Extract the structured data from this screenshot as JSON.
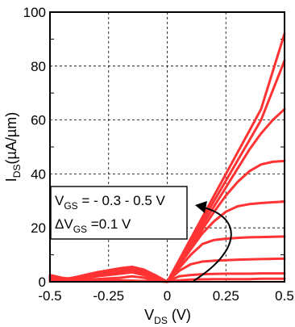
{
  "chart_data": {
    "type": "line",
    "xlabel": {
      "main": "V",
      "sub": "DS",
      "unit": " (V)"
    },
    "ylabel": {
      "main": "I",
      "sub": "DS",
      "unit": "(µA/µm)"
    },
    "xlim": [
      -0.5,
      0.5
    ],
    "ylim": [
      0,
      100
    ],
    "xticks": [
      -0.5,
      -0.25,
      0,
      0.25,
      0.5
    ],
    "xtick_labels": [
      "-0.5",
      "-0.25",
      "0",
      "0.25",
      "0.5"
    ],
    "yticks": [
      0,
      20,
      40,
      60,
      80,
      100
    ],
    "ytick_labels": [
      "0",
      "20",
      "40",
      "60",
      "80",
      "100"
    ],
    "grid": true,
    "line_color": "#ff3333",
    "annotation": {
      "line1": {
        "main": "V",
        "sub": "GS",
        "rest": " = - 0.3 - 0.5 V"
      },
      "line2": {
        "main": "ΔV",
        "sub": "GS",
        "rest": " =0.1 V"
      }
    },
    "series": [
      {
        "x": [
          -0.5,
          -0.45,
          -0.4,
          -0.3,
          -0.2,
          -0.1,
          -0.05,
          0,
          0.05,
          0.1,
          0.15,
          0.2,
          0.25,
          0.3,
          0.35,
          0.4,
          0.45,
          0.5
        ],
        "y": [
          2,
          1,
          0.5,
          0.5,
          0.5,
          0.3,
          0.2,
          0,
          0.5,
          0.8,
          0.9,
          1.0,
          1.0,
          1.0,
          1.0,
          1.1,
          1.1,
          1.1
        ]
      },
      {
        "x": [
          -0.5,
          -0.45,
          -0.4,
          -0.3,
          -0.2,
          -0.15,
          -0.1,
          -0.05,
          0,
          0.05,
          0.1,
          0.15,
          0.2,
          0.25,
          0.3,
          0.35,
          0.4,
          0.45,
          0.5
        ],
        "y": [
          2.5,
          1.5,
          1,
          1,
          1.5,
          2,
          1.5,
          0.5,
          0,
          2,
          2.5,
          2.8,
          2.9,
          3.0,
          3.0,
          3.0,
          3.1,
          3.1,
          3.1
        ]
      },
      {
        "x": [
          -0.5,
          -0.45,
          -0.4,
          -0.3,
          -0.2,
          -0.15,
          -0.1,
          -0.05,
          0,
          0.05,
          0.1,
          0.15,
          0.2,
          0.25,
          0.3,
          0.35,
          0.4,
          0.45,
          0.5
        ],
        "y": [
          1.5,
          1,
          1,
          2,
          3,
          3.5,
          2.5,
          1,
          0,
          4,
          6.5,
          7.5,
          7.8,
          8.0,
          8.2,
          8.3,
          8.4,
          8.5,
          8.6
        ]
      },
      {
        "x": [
          -0.5,
          -0.45,
          -0.4,
          -0.3,
          -0.2,
          -0.15,
          -0.1,
          -0.05,
          0,
          0.05,
          0.1,
          0.15,
          0.2,
          0.25,
          0.3,
          0.35,
          0.4,
          0.45,
          0.5
        ],
        "y": [
          1,
          1,
          1.5,
          2.5,
          3.5,
          4,
          3,
          1.5,
          0,
          5,
          10,
          14,
          15.5,
          16,
          16.3,
          16.5,
          16.6,
          16.7,
          16.8
        ]
      },
      {
        "x": [
          -0.5,
          -0.45,
          -0.4,
          -0.3,
          -0.2,
          -0.15,
          -0.1,
          -0.05,
          0,
          0.05,
          0.1,
          0.15,
          0.2,
          0.25,
          0.3,
          0.35,
          0.4,
          0.45,
          0.5
        ],
        "y": [
          0.5,
          0.8,
          1.5,
          3,
          4,
          4.5,
          3.5,
          1.8,
          0,
          6,
          12,
          18,
          22.5,
          26,
          28,
          28.8,
          29.2,
          29.5,
          29.7
        ]
      },
      {
        "x": [
          -0.5,
          -0.45,
          -0.4,
          -0.3,
          -0.2,
          -0.15,
          -0.1,
          -0.05,
          0,
          0.05,
          0.1,
          0.15,
          0.2,
          0.25,
          0.3,
          0.35,
          0.4,
          0.45,
          0.5
        ],
        "y": [
          0.5,
          0.5,
          1.5,
          3.5,
          4.5,
          5,
          4,
          2,
          0,
          6.5,
          13,
          19.5,
          26,
          32,
          37,
          41,
          43.5,
          44.5,
          44.8
        ]
      },
      {
        "x": [
          -0.5,
          -0.45,
          -0.4,
          -0.3,
          -0.2,
          -0.15,
          -0.1,
          -0.05,
          0,
          0.05,
          0.1,
          0.15,
          0.2,
          0.25,
          0.3,
          0.35,
          0.4,
          0.45,
          0.5
        ],
        "y": [
          0.3,
          0.5,
          1.5,
          3.5,
          5,
          5.5,
          4.5,
          2.2,
          0,
          7,
          14,
          21,
          28,
          35,
          42,
          49,
          55,
          60,
          64
        ]
      },
      {
        "x": [
          -0.5,
          -0.45,
          -0.4,
          -0.3,
          -0.2,
          -0.15,
          -0.1,
          -0.05,
          0,
          0.05,
          0.1,
          0.15,
          0.2,
          0.25,
          0.3,
          0.35,
          0.4,
          0.45,
          0.5
        ],
        "y": [
          0.2,
          0.5,
          1.5,
          3.5,
          5,
          5.5,
          4.5,
          2.3,
          0,
          7.5,
          15,
          22.5,
          30,
          37.5,
          45,
          52.5,
          60,
          71,
          82
        ]
      },
      {
        "x": [
          -0.5,
          -0.45,
          -0.4,
          -0.3,
          -0.2,
          -0.15,
          -0.1,
          -0.05,
          0,
          0.05,
          0.1,
          0.15,
          0.2,
          0.25,
          0.3,
          0.35,
          0.4,
          0.45,
          0.5
        ],
        "y": [
          0.2,
          0.5,
          1.5,
          3.5,
          5,
          5.5,
          4.5,
          2.4,
          0,
          8,
          16,
          24,
          32,
          40,
          48,
          56,
          64,
          78,
          92
        ]
      }
    ]
  }
}
